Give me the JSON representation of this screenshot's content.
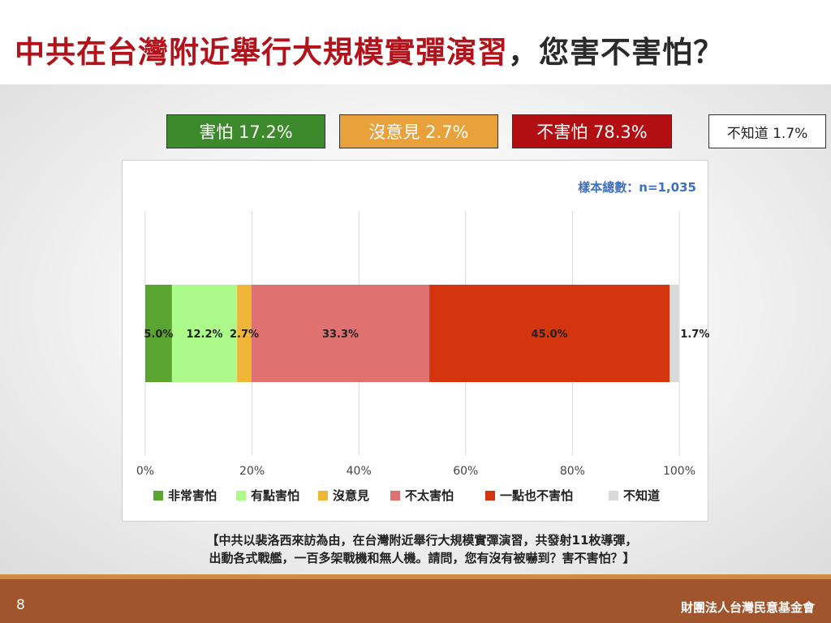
{
  "title": {
    "main": "中共在台灣附近舉行大規模實彈演習",
    "tail": "，您害不害怕？"
  },
  "summary": [
    {
      "label": "害怕 17.2%",
      "color": "#3d8a2c"
    },
    {
      "label": "沒意見 2.7%",
      "color": "#e9a13b"
    },
    {
      "label": "不害怕 78.3%",
      "color": "#b30f12"
    },
    {
      "label": "不知道 1.7%",
      "color": "#ffffff"
    }
  ],
  "sample_size_text": "樣本總數：n=1,035",
  "chart_data": {
    "type": "bar",
    "orientation": "horizontal-stacked-100",
    "categories": [
      ""
    ],
    "series": [
      {
        "name": "非常害怕",
        "values": [
          5.0
        ],
        "label": "5.0%",
        "color": "#5aa52f"
      },
      {
        "name": "有點害怕",
        "values": [
          12.2
        ],
        "label": "12.2%",
        "color": "#acfb8a"
      },
      {
        "name": "沒意見",
        "values": [
          2.7
        ],
        "label": "2.7%",
        "color": "#f1b537"
      },
      {
        "name": "不太害怕",
        "values": [
          33.3
        ],
        "label": "33.3%",
        "color": "#e07171"
      },
      {
        "name": "一點也不害怕",
        "values": [
          45.0
        ],
        "label": "45.0%",
        "color": "#d4350f"
      },
      {
        "name": "不知道",
        "values": [
          1.7
        ],
        "label": "1.7%",
        "color": "#d9d9d9"
      }
    ],
    "xlim": [
      0,
      100
    ],
    "x_ticks": [
      "0%",
      "20%",
      "40%",
      "60%",
      "80%",
      "100%"
    ],
    "grid": true,
    "legend_position": "bottom"
  },
  "question": {
    "line1": "【中共以裴洛西來訪為由，在台灣附近舉行大規模實彈演習，共發射11枚導彈，",
    "line2": "出動各式戰艦，一百多架戰機和無人機。請問，您有沒有被嚇到？害不害怕？】"
  },
  "footer": {
    "page_number": "8",
    "org": "財團法人台灣民意基金會"
  }
}
